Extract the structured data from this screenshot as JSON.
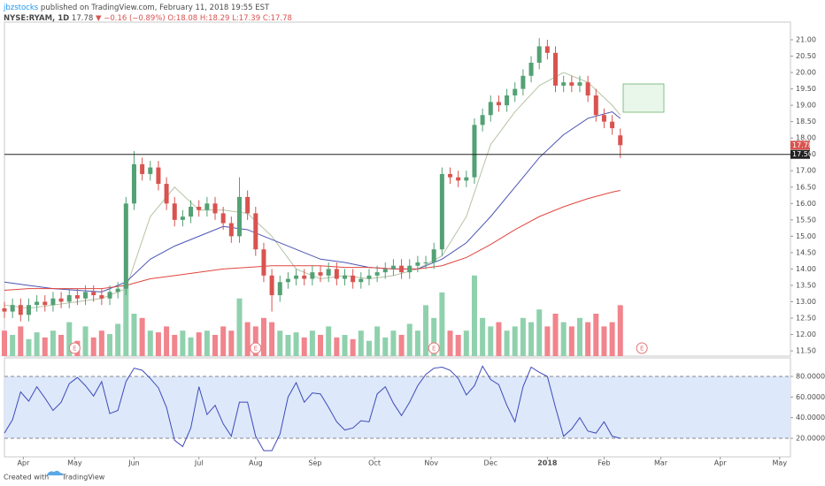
{
  "header": {
    "author": "jbzstocks",
    "published": "published on TradingView.com, February 11, 2018 19:55 EST",
    "symbol": "NYSE:RYAM, 1D",
    "last": "17.78",
    "change": "▼ −0.16 (−0.89%)",
    "open": "O:18.08",
    "high": "H:18.29",
    "low": "L:17.39",
    "close": "C:17.78"
  },
  "footer": {
    "created": "Created with",
    "brand": "TradingView"
  },
  "chart_data": [
    {
      "type": "candlestick",
      "x": [
        0,
        3,
        6,
        9,
        12,
        15,
        18,
        21,
        24,
        27,
        30,
        33,
        36,
        39,
        42,
        45,
        48,
        51,
        54,
        57,
        60,
        63,
        66,
        69,
        72,
        75,
        78,
        81,
        84,
        87,
        90,
        93,
        96,
        99,
        102,
        105,
        108,
        111,
        114,
        117,
        120,
        123,
        126,
        129,
        132,
        135,
        138,
        141,
        144,
        147,
        150,
        153,
        156,
        159,
        162,
        165,
        168,
        171,
        174,
        177,
        180,
        183,
        186,
        189,
        192,
        195,
        198,
        201,
        204,
        207,
        210,
        213,
        216,
        219,
        222,
        225,
        228
      ],
      "open": [
        12.8,
        12.7,
        12.9,
        12.6,
        12.9,
        13.0,
        12.9,
        13.1,
        13.0,
        13.2,
        13.1,
        13.3,
        13.2,
        13.1,
        13.3,
        13.4,
        16.0,
        17.2,
        16.9,
        17.1,
        16.6,
        16.0,
        15.5,
        15.6,
        15.9,
        15.8,
        16.0,
        15.7,
        15.4,
        15.0,
        16.2,
        15.7,
        14.6,
        13.8,
        13.2,
        13.6,
        13.7,
        13.8,
        13.7,
        13.9,
        13.8,
        14.0,
        13.7,
        13.8,
        13.6,
        13.7,
        13.8,
        13.9,
        14.0,
        14.1,
        13.9,
        14.1,
        14.2,
        14.2,
        14.6,
        16.9,
        16.8,
        16.7,
        16.8,
        18.4,
        18.7,
        19.1,
        19.0,
        19.3,
        19.5,
        19.9,
        20.3,
        20.8,
        20.6,
        19.6,
        19.7,
        19.6,
        19.7,
        19.3,
        18.7,
        18.5,
        18.08
      ],
      "high": [
        13.0,
        13.1,
        13.1,
        13.1,
        13.2,
        13.2,
        13.3,
        13.3,
        13.4,
        13.4,
        13.5,
        13.5,
        13.4,
        13.5,
        13.6,
        16.2,
        17.6,
        17.4,
        17.3,
        17.3,
        16.8,
        16.2,
        15.8,
        16.1,
        16.1,
        16.2,
        16.2,
        15.9,
        15.6,
        16.8,
        16.4,
        15.9,
        14.8,
        14.0,
        13.8,
        13.9,
        14.0,
        14.0,
        14.1,
        14.1,
        14.2,
        14.2,
        14.0,
        14.0,
        13.9,
        14.0,
        14.1,
        14.2,
        14.3,
        14.3,
        14.3,
        14.4,
        14.4,
        14.8,
        17.1,
        17.1,
        17.0,
        17.0,
        18.6,
        18.9,
        19.3,
        19.3,
        19.5,
        19.7,
        20.1,
        20.5,
        21.05,
        21.0,
        20.8,
        19.9,
        19.9,
        19.9,
        19.9,
        19.5,
        18.9,
        18.7,
        18.29
      ],
      "low": [
        12.5,
        12.5,
        12.4,
        12.4,
        12.7,
        12.7,
        12.7,
        12.8,
        12.8,
        12.9,
        12.9,
        13.0,
        12.9,
        12.9,
        13.1,
        13.2,
        15.8,
        16.7,
        16.7,
        16.4,
        15.8,
        15.3,
        15.3,
        15.4,
        15.6,
        15.6,
        15.5,
        15.2,
        14.8,
        14.8,
        15.5,
        14.4,
        13.6,
        12.7,
        13.0,
        13.4,
        13.5,
        13.5,
        13.5,
        13.6,
        13.6,
        13.5,
        13.5,
        13.4,
        13.4,
        13.5,
        13.6,
        13.7,
        13.8,
        13.7,
        13.7,
        13.9,
        14.0,
        14.0,
        14.4,
        16.6,
        16.5,
        16.5,
        16.6,
        18.2,
        18.5,
        18.8,
        18.8,
        19.1,
        19.3,
        19.7,
        20.1,
        20.4,
        19.4,
        19.4,
        19.4,
        19.4,
        19.1,
        18.5,
        18.3,
        18.1,
        17.39
      ],
      "close": [
        12.7,
        12.9,
        12.6,
        12.9,
        13.0,
        12.9,
        13.1,
        13.0,
        13.2,
        13.1,
        13.3,
        13.2,
        13.1,
        13.3,
        13.4,
        16.0,
        17.2,
        16.9,
        17.1,
        16.6,
        16.0,
        15.5,
        15.6,
        15.9,
        15.8,
        16.0,
        15.7,
        15.4,
        15.0,
        16.2,
        15.7,
        14.6,
        13.8,
        13.2,
        13.6,
        13.7,
        13.8,
        13.7,
        13.9,
        13.8,
        14.0,
        13.7,
        13.8,
        13.6,
        13.7,
        13.8,
        13.9,
        14.0,
        14.1,
        13.9,
        14.1,
        14.2,
        14.2,
        14.6,
        16.9,
        16.8,
        16.7,
        16.8,
        18.4,
        18.7,
        19.1,
        19.0,
        19.3,
        19.5,
        19.9,
        20.3,
        20.8,
        20.6,
        19.6,
        19.7,
        19.6,
        19.7,
        19.3,
        18.7,
        18.5,
        18.3,
        17.78
      ],
      "volume": [
        30,
        25,
        35,
        20,
        28,
        22,
        30,
        25,
        40,
        18,
        35,
        22,
        30,
        26,
        38,
        85,
        50,
        45,
        30,
        28,
        35,
        25,
        30,
        22,
        28,
        30,
        25,
        35,
        30,
        68,
        40,
        35,
        45,
        40,
        30,
        25,
        28,
        22,
        30,
        25,
        35,
        22,
        25,
        20,
        30,
        18,
        35,
        22,
        30,
        25,
        38,
        30,
        60,
        45,
        75,
        30,
        25,
        30,
        95,
        45,
        35,
        40,
        30,
        35,
        45,
        40,
        55,
        35,
        50,
        40,
        35,
        45,
        40,
        50,
        35,
        40,
        60
      ],
      "volume_lim": [
        0,
        100
      ],
      "up_color": "#53a175",
      "down_color": "#d9534f",
      "volume_up_color": "#8fd1ad",
      "volume_down_color": "#f1848c",
      "overlays": [
        {
          "color": "#b4c4a4",
          "x": [
            0,
            9,
            18,
            27,
            36,
            45,
            54,
            63,
            72,
            81,
            90,
            99,
            108,
            117,
            126,
            135,
            144,
            153,
            162,
            171,
            180,
            189,
            198,
            207,
            216,
            225,
            228
          ],
          "values": [
            12.9,
            12.8,
            12.9,
            13.0,
            13.1,
            13.4,
            15.6,
            16.5,
            15.8,
            15.8,
            15.7,
            15.0,
            14.0,
            13.7,
            13.8,
            13.7,
            13.8,
            14.0,
            14.4,
            15.6,
            17.8,
            18.8,
            19.6,
            20.0,
            19.7,
            19.0,
            18.7
          ]
        },
        {
          "color": "#4b55b5",
          "x": [
            0,
            9,
            18,
            27,
            36,
            45,
            54,
            63,
            72,
            81,
            90,
            99,
            108,
            117,
            126,
            135,
            144,
            153,
            162,
            171,
            180,
            189,
            198,
            207,
            216,
            225,
            228
          ],
          "values": [
            13.6,
            13.5,
            13.4,
            13.35,
            13.3,
            13.6,
            14.3,
            14.7,
            15.0,
            15.3,
            15.2,
            14.9,
            14.6,
            14.3,
            14.2,
            14.05,
            14.0,
            14.0,
            14.3,
            14.8,
            15.6,
            16.5,
            17.4,
            18.1,
            18.6,
            18.8,
            18.6
          ]
        },
        {
          "color": "#e0453f",
          "x": [
            0,
            9,
            18,
            27,
            36,
            45,
            54,
            63,
            72,
            81,
            90,
            99,
            108,
            117,
            126,
            135,
            144,
            153,
            162,
            171,
            180,
            189,
            198,
            207,
            216,
            225,
            228
          ],
          "values": [
            13.35,
            13.4,
            13.4,
            13.4,
            13.4,
            13.5,
            13.7,
            13.8,
            13.9,
            14.0,
            14.05,
            14.1,
            14.1,
            14.1,
            14.05,
            14.05,
            14.0,
            14.0,
            14.1,
            14.35,
            14.75,
            15.2,
            15.6,
            15.9,
            16.15,
            16.35,
            16.4
          ]
        }
      ],
      "hline": {
        "value": 17.5,
        "label": "17.50"
      },
      "last_price": {
        "value": 17.78,
        "label": "17.78"
      },
      "earnings": {
        "x": [
          26,
          93,
          159,
          236
        ],
        "label": "E"
      },
      "xlim": [
        0,
        291
      ],
      "ylim": [
        11.34,
        21.54
      ],
      "yticks": [
        {
          "value": 11.5,
          "label": "11.50"
        },
        {
          "value": 12,
          "label": "12.00"
        },
        {
          "value": 12.5,
          "label": "12.50"
        },
        {
          "value": 13,
          "label": "13.00"
        },
        {
          "value": 13.5,
          "label": "13.50"
        },
        {
          "value": 14,
          "label": "14.00"
        },
        {
          "value": 14.5,
          "label": "14.50"
        },
        {
          "value": 15,
          "label": "15.00"
        },
        {
          "value": 15.5,
          "label": "15.50"
        },
        {
          "value": 16,
          "label": "16.00"
        },
        {
          "value": 16.5,
          "label": "16.50"
        },
        {
          "value": 17,
          "label": "17.00"
        },
        {
          "value": 17.5,
          "label": "17.50"
        },
        {
          "value": 18,
          "label": "18.00"
        },
        {
          "value": 18.5,
          "label": "18.50"
        },
        {
          "value": 19,
          "label": "19.00"
        },
        {
          "value": 19.5,
          "label": "19.50"
        },
        {
          "value": 20,
          "label": "20.00"
        },
        {
          "value": 20.5,
          "label": "20.50"
        },
        {
          "value": 21,
          "label": "21.00"
        }
      ]
    },
    {
      "type": "line",
      "x": [
        0,
        3,
        6,
        9,
        12,
        15,
        18,
        21,
        24,
        27,
        30,
        33,
        36,
        39,
        42,
        45,
        48,
        51,
        54,
        57,
        60,
        63,
        66,
        69,
        72,
        75,
        78,
        81,
        84,
        87,
        90,
        93,
        96,
        99,
        102,
        105,
        108,
        111,
        114,
        117,
        120,
        123,
        126,
        129,
        132,
        135,
        138,
        141,
        144,
        147,
        150,
        153,
        156,
        159,
        162,
        165,
        168,
        171,
        174,
        177,
        180,
        183,
        186,
        189,
        192,
        195,
        198,
        201,
        204,
        207,
        210,
        213,
        216,
        219,
        222,
        225,
        228
      ],
      "values": [
        25,
        38,
        65,
        56,
        70,
        59,
        47,
        55,
        73,
        79,
        71,
        61,
        75,
        44,
        47,
        75,
        88,
        86,
        78,
        69,
        50,
        18,
        12,
        30,
        70,
        43,
        52,
        34,
        22,
        55,
        55,
        22,
        8,
        8,
        24,
        60,
        74,
        55,
        64,
        63,
        50,
        36,
        28,
        30,
        37,
        36,
        63,
        70,
        54,
        42,
        55,
        71,
        82,
        88,
        89,
        86,
        78,
        62,
        71,
        90,
        77,
        72,
        52,
        36,
        70,
        89,
        84,
        80,
        50,
        22,
        29,
        40,
        27,
        25,
        36,
        22,
        20
      ],
      "color": "#3f4ab8",
      "levels": [
        20,
        80
      ],
      "band_color": "#dde8fb",
      "xlim": [
        0,
        291
      ],
      "ylim": [
        2,
        98
      ],
      "yticks": [
        {
          "value": 20,
          "label": "20.0000"
        },
        {
          "value": 40,
          "label": "40.0000"
        },
        {
          "value": 60,
          "label": "60.0000"
        },
        {
          "value": 80,
          "label": "80.0000"
        }
      ],
      "xticks": [
        {
          "value": 7,
          "label": "Apr"
        },
        {
          "value": 26,
          "label": "May"
        },
        {
          "value": 48,
          "label": "Jun"
        },
        {
          "value": 72,
          "label": "Jul"
        },
        {
          "value": 93,
          "label": "Aug"
        },
        {
          "value": 115,
          "label": "Sep"
        },
        {
          "value": 137,
          "label": "Oct"
        },
        {
          "value": 158,
          "label": "Nov"
        },
        {
          "value": 180,
          "label": "Dec"
        },
        {
          "value": 201,
          "label": "2018"
        },
        {
          "value": 222,
          "label": "Feb"
        },
        {
          "value": 243,
          "label": "Mar"
        },
        {
          "value": 265,
          "label": "Apr"
        },
        {
          "value": 287,
          "label": "May"
        }
      ]
    }
  ]
}
